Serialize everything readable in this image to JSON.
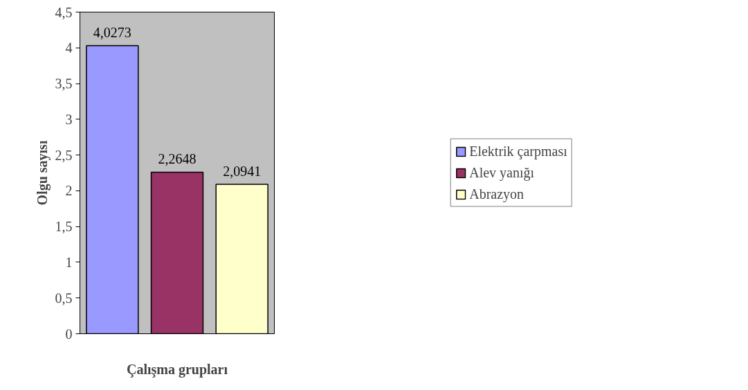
{
  "chart_data": {
    "type": "bar",
    "categories": [
      null
    ],
    "xlabel": "Çalışma grupları",
    "ylabel": "Olgu sayısı",
    "series": [
      {
        "name": "Elektrik çarpması",
        "color": "#9999ff",
        "values": [
          4.03
        ],
        "value_labels": [
          "4,0273"
        ]
      },
      {
        "name": "Alev yanığı",
        "color": "#993366",
        "values": [
          2.26
        ],
        "value_labels": [
          "2,2648"
        ]
      },
      {
        "name": "Abrazyon",
        "color": "#ffffcc",
        "values": [
          2.09
        ],
        "value_labels": [
          "2,0941"
        ]
      }
    ],
    "ylim": [
      0,
      4.5
    ],
    "yticks": [
      0,
      {
        "value": 0.5,
        "label": "0,5"
      },
      1,
      {
        "value": 1.5,
        "label": "1,5"
      },
      2,
      {
        "value": 2.5,
        "label": "2,5"
      },
      3,
      {
        "value": 3.5,
        "label": "3,5"
      },
      4,
      {
        "value": 4.5,
        "label": "4,5"
      }
    ],
    "legend": "right",
    "grid": false,
    "tick_labels": "y"
  }
}
